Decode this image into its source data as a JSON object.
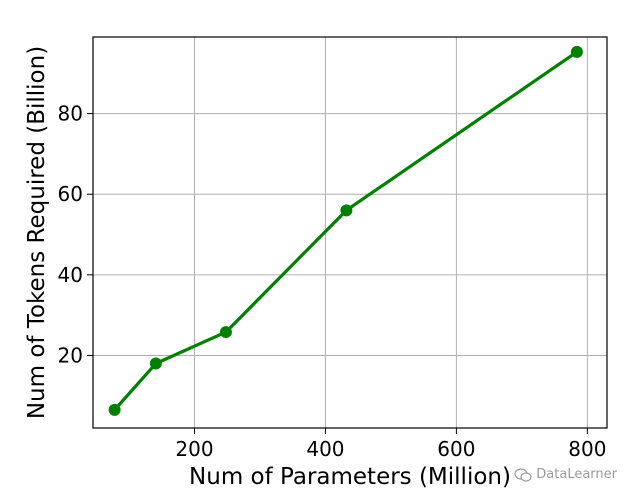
{
  "chart_data": {
    "type": "line",
    "xlabel": "Num of Parameters (Million)",
    "ylabel": "Num of Tokens Required (Billion)",
    "xlim": [
      45,
      830
    ],
    "ylim": [
      2,
      99
    ],
    "xticks": [
      200,
      400,
      600,
      800
    ],
    "yticks": [
      20,
      40,
      60,
      80
    ],
    "grid": true,
    "series": [
      {
        "color": "#008000",
        "marker": "circle",
        "x": [
          78,
          141,
          248,
          432,
          784
        ],
        "y": [
          6.5,
          18.0,
          25.8,
          56.0,
          95.3
        ]
      }
    ]
  },
  "watermark": {
    "text": "DataLearner",
    "icon": "wechat-icon"
  }
}
